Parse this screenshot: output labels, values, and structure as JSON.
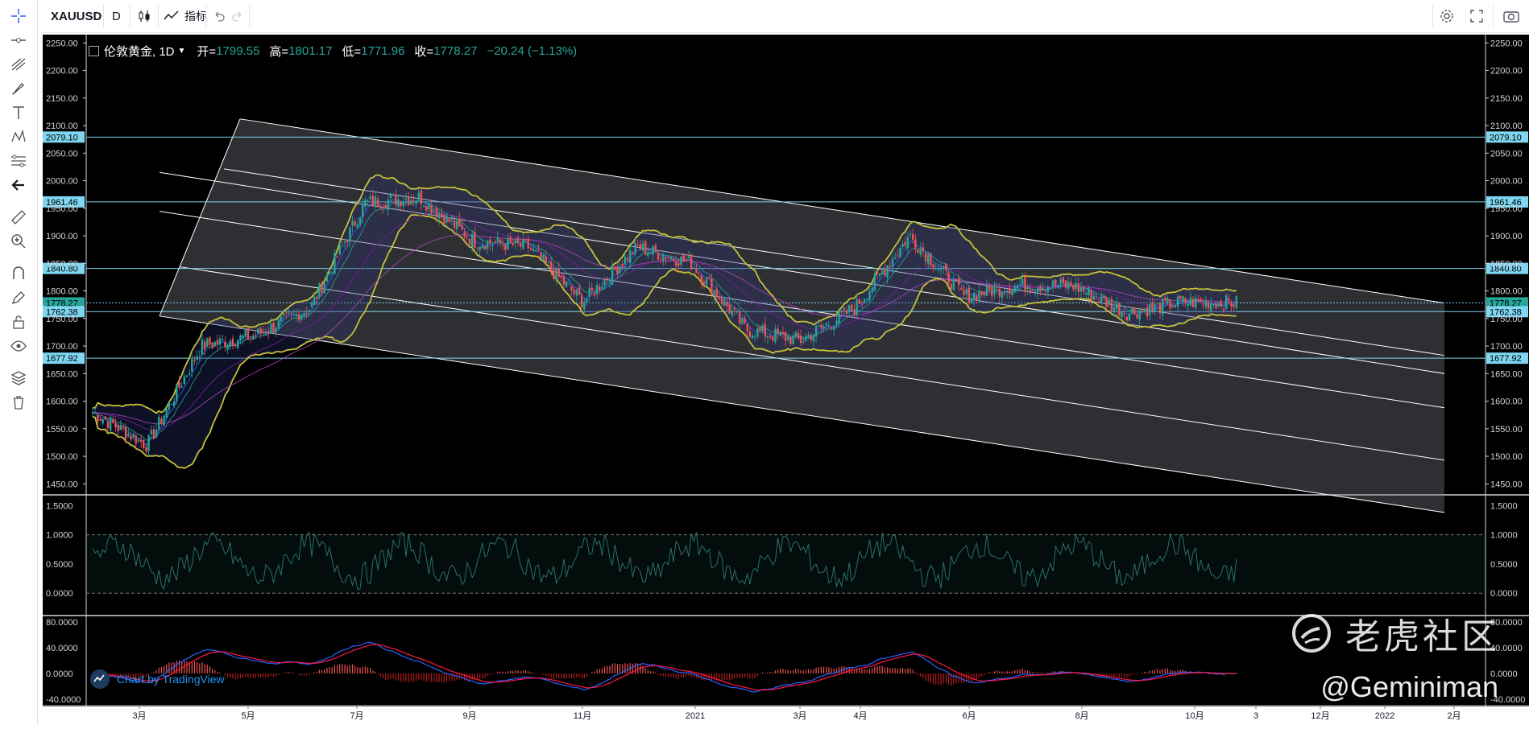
{
  "toolbar": {
    "symbol": "XAUUSD",
    "interval": "D",
    "indicators_label": "指标"
  },
  "legend": {
    "title": "伦敦黄金, 1D",
    "open_label": "开=",
    "open": "1799.55",
    "high_label": "高=",
    "high": "1801.17",
    "low_label": "低=",
    "low": "1771.96",
    "close_label": "收=",
    "close": "1778.27",
    "change": "−20.24 (−1.13%)"
  },
  "price_axis": {
    "ticks": [
      "2250.00",
      "2200.00",
      "2150.00",
      "2100.00",
      "2050.00",
      "2000.00",
      "1950.00",
      "1900.00",
      "1850.00",
      "1800.00",
      "1750.00",
      "1700.00",
      "1650.00",
      "1600.00",
      "1550.00",
      "1500.00",
      "1450.00"
    ],
    "level_labels": [
      "2079.10",
      "1961.46",
      "1840.80",
      "1778.27",
      "1762.38",
      "1677.92"
    ]
  },
  "osc_axis": {
    "ticks": [
      "1.5000",
      "1.0000",
      "0.5000",
      "0.0000"
    ]
  },
  "macd_axis": {
    "ticks": [
      "80.0000",
      "40.0000",
      "0.0000",
      "-40.0000"
    ]
  },
  "time_axis": {
    "labels": [
      "3月",
      "5月",
      "7月",
      "9月",
      "11月",
      "2021",
      "3月",
      "4月",
      "6月",
      "8月",
      "10月",
      "3",
      "12月",
      "2022",
      "2月"
    ]
  },
  "branding": {
    "tradingview": "Chart by TradingView"
  },
  "watermark": {
    "community": "老虎社区",
    "user": "@Geminiman"
  },
  "colors": {
    "up": "#26a69a",
    "down": "#ef5350",
    "bollinger": "#c6c13a",
    "channel": "#ffffff",
    "level": "#7ed6f0",
    "osc": "#2a6f6a",
    "macd": "#2962ff",
    "signal": "#ff1744"
  },
  "chart_data": {
    "type": "candlestick",
    "title": "伦敦黄金, 1D",
    "symbol": "XAUUSD",
    "ylim": [
      1430,
      2265
    ],
    "horizontal_levels": [
      2079.1,
      1961.46,
      1840.8,
      1778.27,
      1762.38,
      1677.92
    ],
    "x": [
      "2020-02",
      "2020-03",
      "2020-04",
      "2020-05",
      "2020-06",
      "2020-07",
      "2020-08",
      "2020-09",
      "2020-10",
      "2020-11",
      "2020-12",
      "2021-01",
      "2021-02",
      "2021-03",
      "2021-04",
      "2021-05",
      "2021-06",
      "2021-07",
      "2021-08",
      "2021-09",
      "2021-10",
      "2021-11"
    ],
    "close": [
      1580,
      1520,
      1700,
      1720,
      1770,
      1960,
      1970,
      1890,
      1880,
      1780,
      1880,
      1850,
      1730,
      1710,
      1770,
      1900,
      1790,
      1810,
      1810,
      1760,
      1780,
      1778.27
    ],
    "osc_ylim": [
      -0.3,
      1.6
    ],
    "macd_ylim": [
      -45,
      85
    ]
  }
}
